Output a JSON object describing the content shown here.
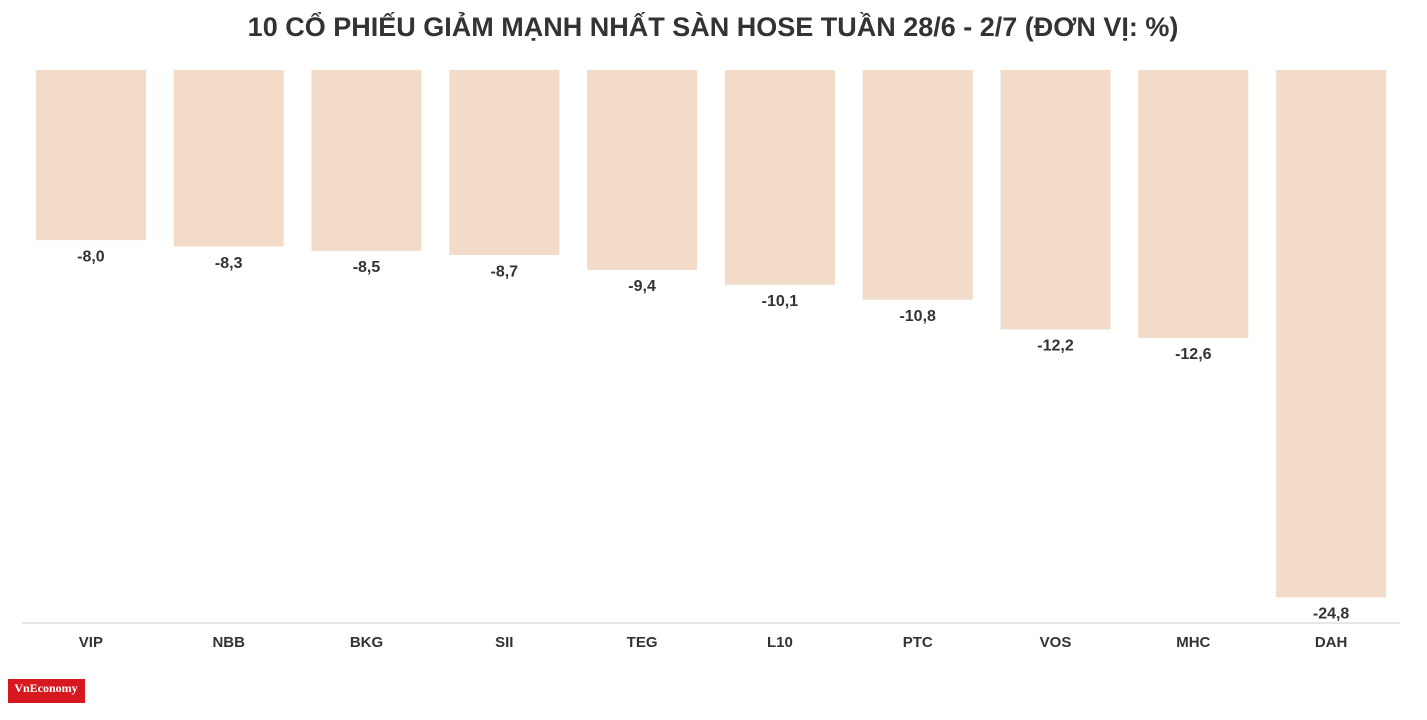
{
  "chart_data": {
    "type": "bar",
    "title": "10 CỔ PHIẾU GIẢM MẠNH NHẤT SÀN HOSE TUẦN 28/6 - 2/7 (ĐƠN VỊ: %)",
    "categories": [
      "VIP",
      "NBB",
      "BKG",
      "SII",
      "TEG",
      "L10",
      "PTC",
      "VOS",
      "MHC",
      "DAH"
    ],
    "values": [
      -8.0,
      -8.3,
      -8.5,
      -8.7,
      -9.4,
      -10.1,
      -10.8,
      -12.2,
      -12.6,
      -24.8
    ],
    "value_labels": [
      "-8,0",
      "-8,3",
      "-8,5",
      "-8,7",
      "-9,4",
      "-10,1",
      "-10,8",
      "-12,2",
      "-12,6",
      "-24,8"
    ],
    "color": "#f2dbc8",
    "ylim": [
      0,
      -26
    ],
    "watermark": "VnEconomy"
  }
}
